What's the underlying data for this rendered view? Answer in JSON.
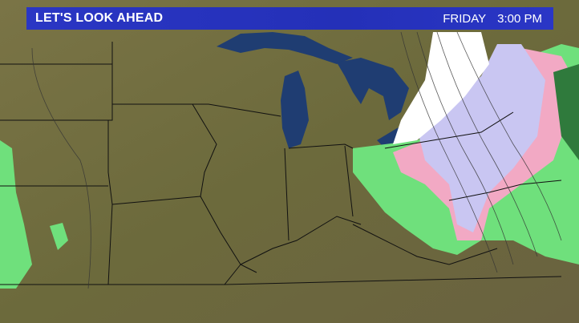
{
  "banner": {
    "title": "LET'S LOOK AHEAD",
    "day": "FRIDAY",
    "time": "3:00 PM"
  },
  "colors": {
    "banner": "#2a36c4",
    "land": "#6f6a3e",
    "water": "#1f3d72",
    "rain": "#6fe07c",
    "mix": "#f2a9c4",
    "snow_light": "#c9c6f2",
    "snow_heavy": "#ffffff"
  },
  "legend_layers": [
    "rain",
    "mix",
    "snow"
  ]
}
